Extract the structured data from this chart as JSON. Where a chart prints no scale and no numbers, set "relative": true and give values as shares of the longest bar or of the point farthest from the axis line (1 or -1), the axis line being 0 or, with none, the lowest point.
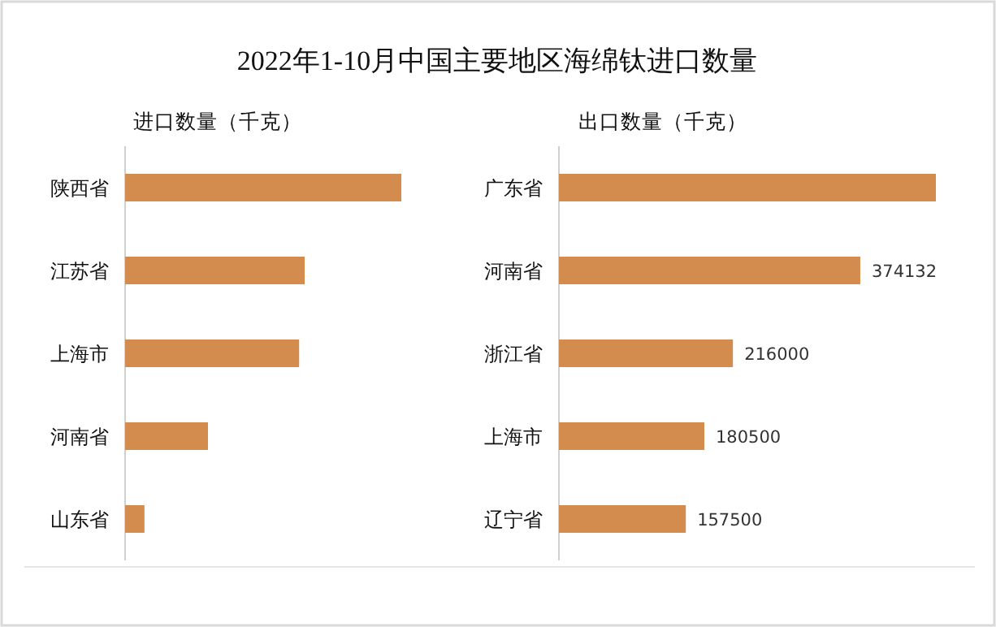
{
  "chart_data": [
    {
      "type": "bar",
      "orientation": "horizontal",
      "relative": true,
      "title": "2022年1-10月中国主要地区海绵钛进口数量",
      "subtitle": "进口数量（千克）",
      "categories": [
        "陕西省",
        "江苏省",
        "上海市",
        "河南省",
        "山东省"
      ],
      "values": [
        1,
        0.65,
        0.63,
        0.3,
        0.07
      ],
      "color": "#d38c4d"
    },
    {
      "type": "bar",
      "orientation": "horizontal",
      "subtitle": "出口数量（千克）",
      "categories": [
        "广东省",
        "河南省",
        "浙江省",
        "上海市",
        "辽宁省"
      ],
      "values": [
        468000,
        374132,
        216000,
        180500,
        157500
      ],
      "value_labels": [
        null,
        "374132",
        "216000",
        "180500",
        "157500"
      ],
      "color": "#d38c4d"
    }
  ]
}
